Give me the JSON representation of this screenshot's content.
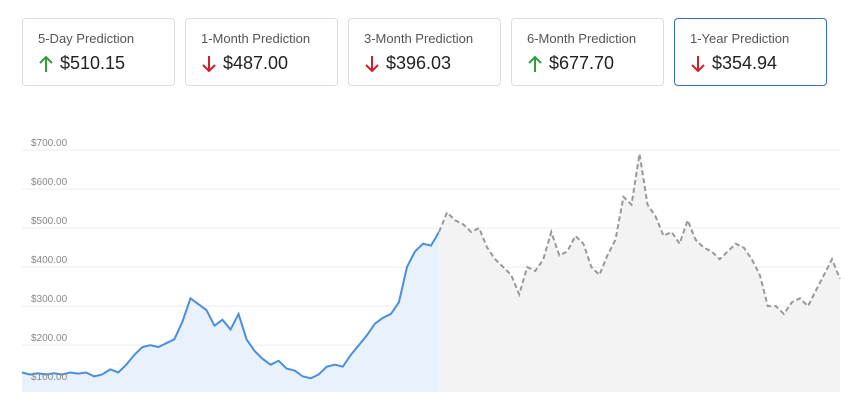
{
  "cards": [
    {
      "label": "5-Day Prediction",
      "value": "$510.15"
    },
    {
      "label": "1-Month Prediction",
      "value": "$487.00"
    },
    {
      "label": "3-Month Prediction",
      "value": "$396.03"
    },
    {
      "label": "6-Month Prediction",
      "value": "$677.70"
    },
    {
      "label": "1-Year Prediction",
      "value": "$354.94"
    }
  ],
  "chart_data": {
    "type": "line",
    "categories": [
      null,
      null,
      null,
      null,
      null,
      null,
      null,
      null,
      null,
      null,
      null,
      null,
      null,
      null,
      null,
      null,
      null,
      null,
      null,
      null,
      null,
      null,
      null,
      null,
      null,
      null,
      null,
      null,
      null,
      null,
      null,
      null,
      null,
      null,
      null,
      null,
      null,
      null,
      null,
      null,
      null,
      null,
      null,
      null,
      null,
      null,
      null,
      null,
      null,
      null,
      null,
      null,
      null,
      null,
      null,
      null,
      null,
      null,
      null,
      null,
      null,
      null,
      null,
      null,
      null,
      null,
      null,
      null,
      null,
      null,
      null,
      null,
      null,
      null,
      null,
      null,
      null,
      null,
      null,
      null,
      null,
      null,
      null,
      null,
      null,
      null,
      null,
      null,
      null,
      null,
      null,
      null,
      null,
      null,
      null,
      null,
      null,
      null,
      null,
      null,
      null,
      null,
      null
    ],
    "series": [
      {
        "color": "#4a8fdd",
        "fill": "#e9f1fc",
        "dashed": false,
        "values": [
          130,
          125,
          128,
          125,
          128,
          125,
          130,
          127,
          130,
          120,
          125,
          138,
          130,
          150,
          175,
          195,
          200,
          195,
          205,
          215,
          260,
          320,
          305,
          290,
          250,
          265,
          240,
          280,
          215,
          185,
          165,
          150,
          160,
          140,
          135,
          120,
          115,
          125,
          145,
          150,
          145,
          175,
          200,
          225,
          255,
          270,
          280,
          310,
          400,
          440,
          460,
          455,
          490,
          null,
          null,
          null,
          null,
          null,
          null,
          null,
          null,
          null,
          null,
          null,
          null,
          null,
          null,
          null,
          null,
          null,
          null,
          null,
          null,
          null,
          null,
          null,
          null,
          null,
          null,
          null,
          null,
          null,
          null,
          null,
          null,
          null,
          null,
          null,
          null,
          null,
          null,
          null,
          null,
          null,
          null,
          null,
          null,
          null,
          null,
          null,
          null,
          null,
          null
        ]
      },
      {
        "color": "#999999",
        "fill": "#f3f3f3",
        "dashed": true,
        "values": [
          null,
          null,
          null,
          null,
          null,
          null,
          null,
          null,
          null,
          null,
          null,
          null,
          null,
          null,
          null,
          null,
          null,
          null,
          null,
          null,
          null,
          null,
          null,
          null,
          null,
          null,
          null,
          null,
          null,
          null,
          null,
          null,
          null,
          null,
          null,
          null,
          null,
          null,
          null,
          null,
          null,
          null,
          null,
          null,
          null,
          null,
          null,
          null,
          null,
          null,
          null,
          null,
          490,
          540,
          520,
          510,
          490,
          500,
          450,
          420,
          400,
          380,
          330,
          400,
          390,
          420,
          490,
          430,
          440,
          480,
          460,
          400,
          380,
          430,
          470,
          580,
          560,
          690,
          560,
          530,
          480,
          490,
          460,
          520,
          470,
          450,
          440,
          420,
          440,
          460,
          450,
          420,
          380,
          300,
          300,
          280,
          310,
          320,
          300,
          340,
          380,
          420,
          370
        ]
      }
    ],
    "ylim": [
      80,
      700
    ],
    "yticks": [
      {
        "value": 100,
        "label": "$100.00"
      },
      {
        "value": 200,
        "label": "$200.00"
      },
      {
        "value": 300,
        "label": "$300.00"
      },
      {
        "value": 400,
        "label": "$400.00"
      },
      {
        "value": 500,
        "label": "$500.00"
      },
      {
        "value": 600,
        "label": "$600.00"
      },
      {
        "value": 700,
        "label": "$700.00"
      }
    ],
    "grid": true
  }
}
